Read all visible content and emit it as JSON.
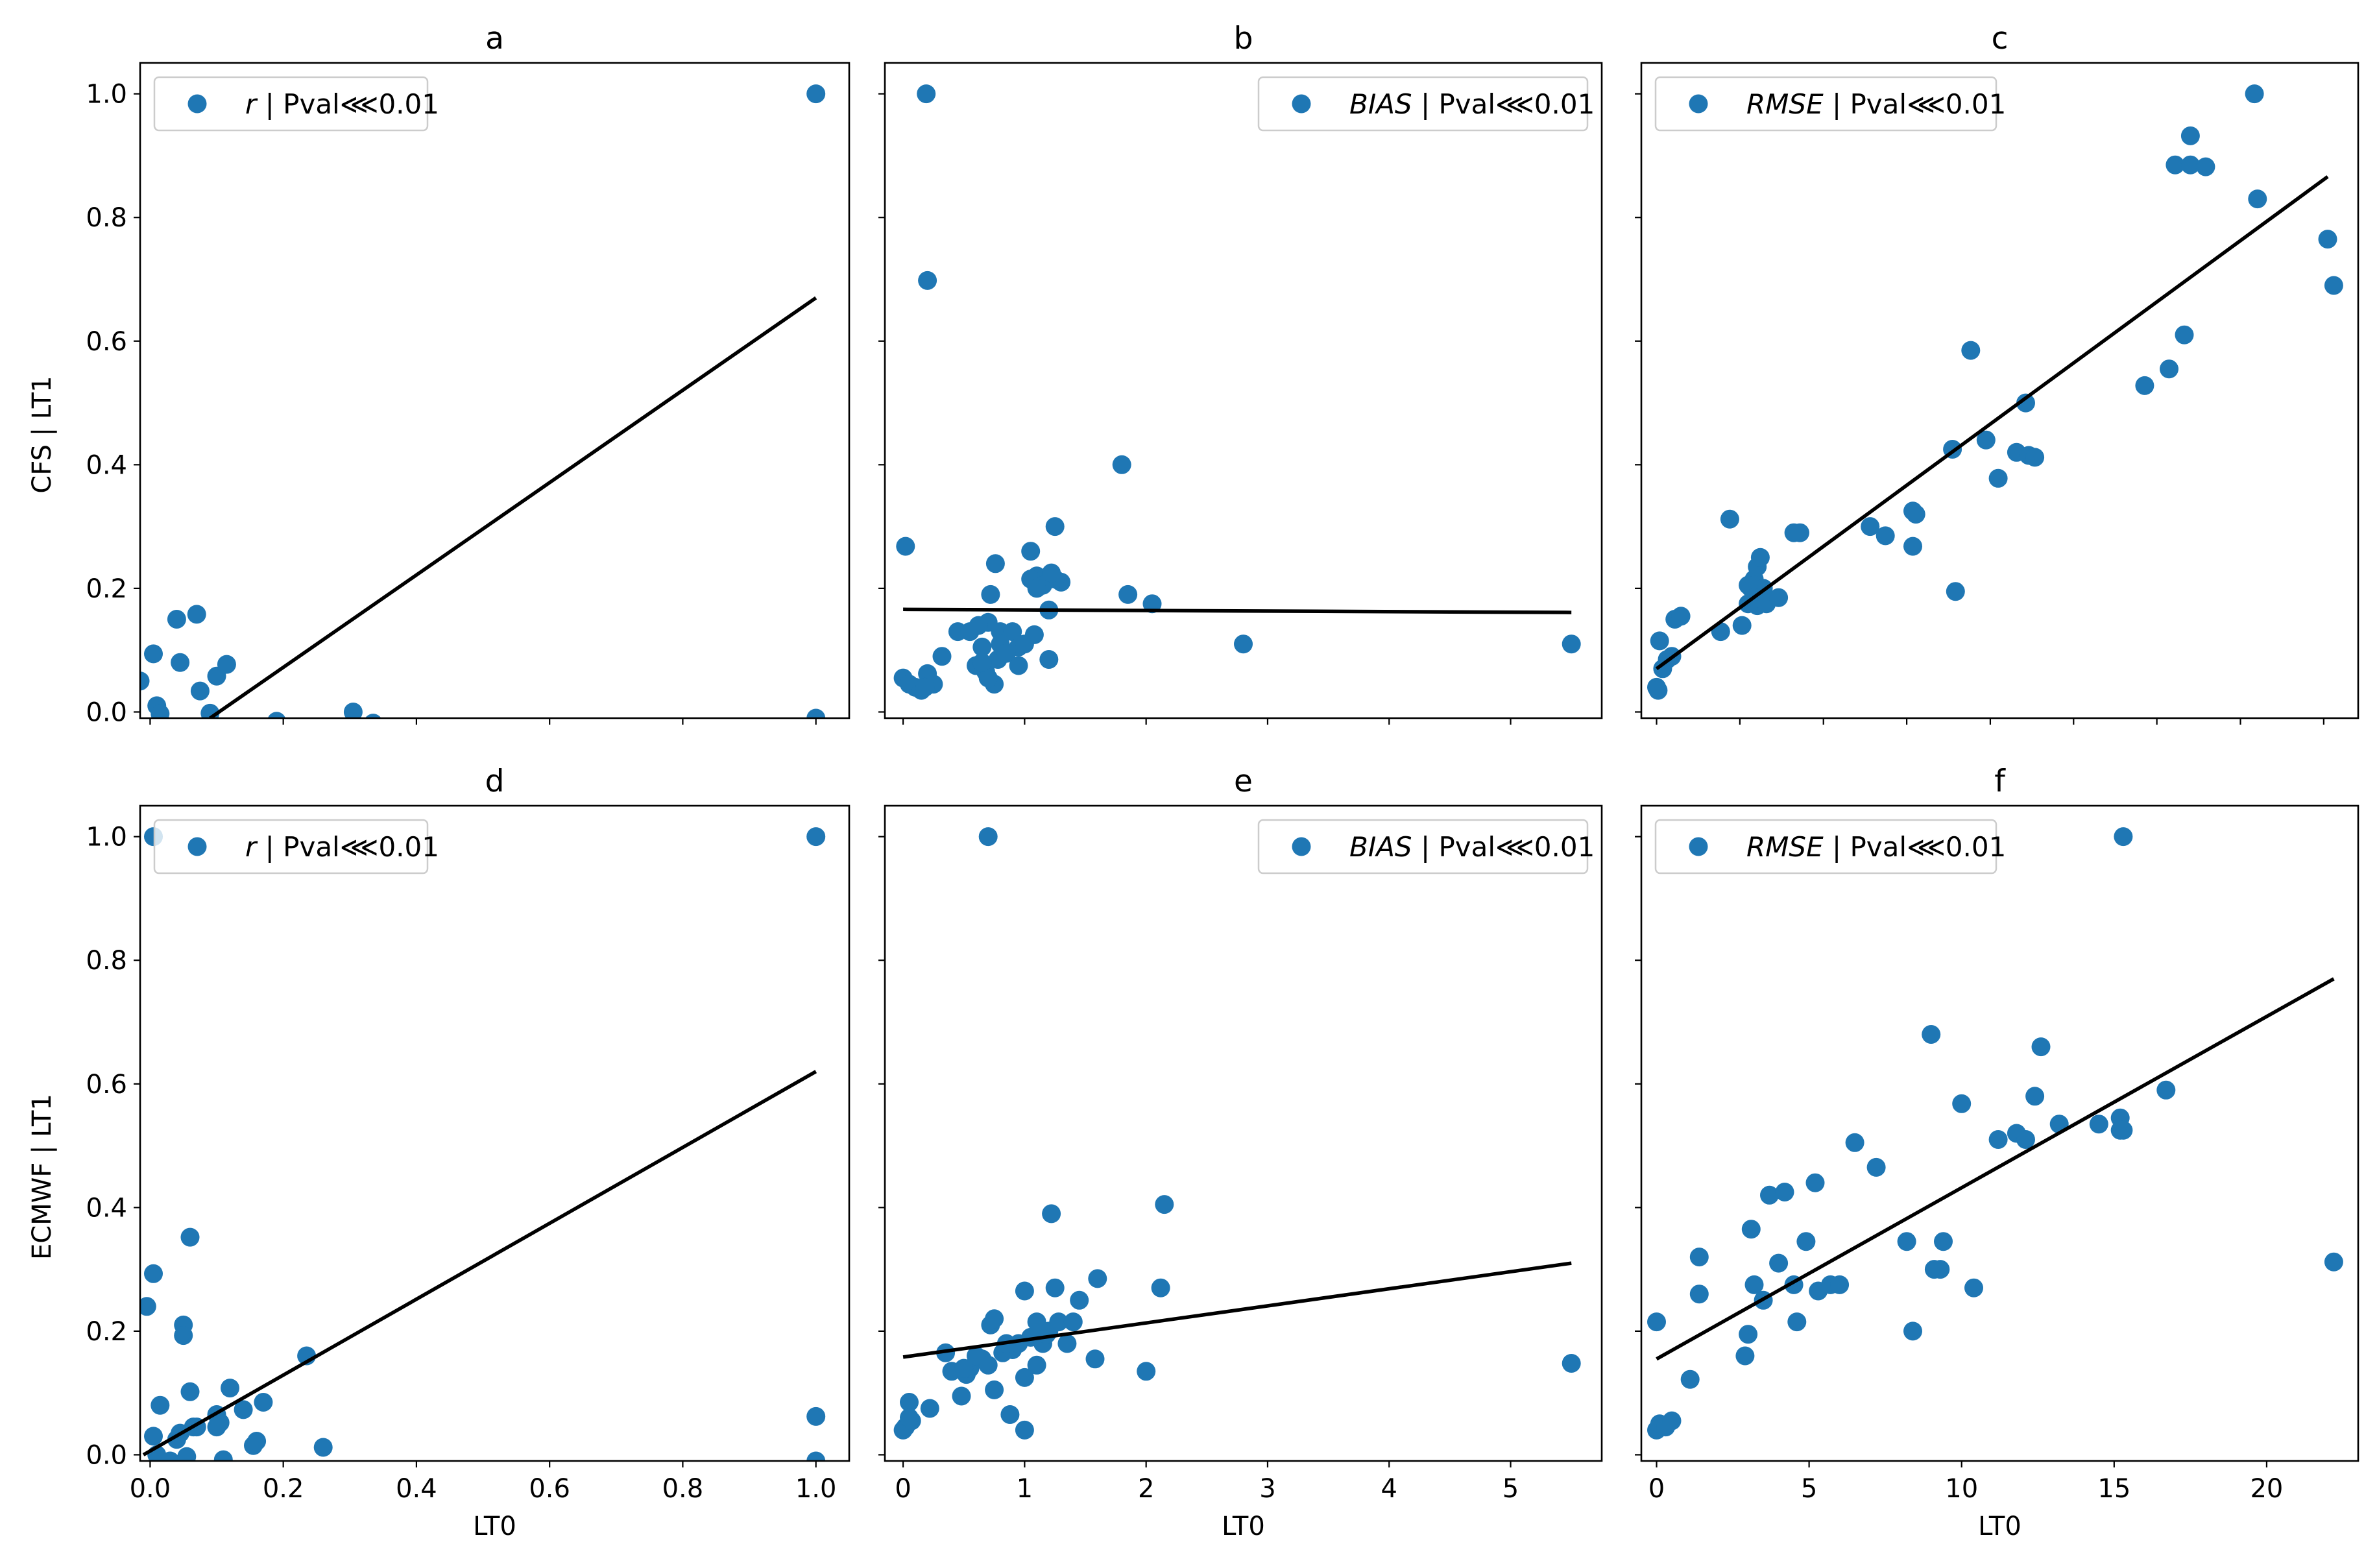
{
  "figure": {
    "row_labels": [
      "CFS | LT1",
      "ECMWF | LT1"
    ],
    "xlabel": "LT0"
  },
  "chart_data": [
    {
      "id": "a",
      "type": "scatter",
      "title": "a",
      "legend": {
        "metric": "r",
        "text": " | Pval⋘0.01",
        "placement": "top-left"
      },
      "xlim": [
        -0.015,
        1.05
      ],
      "ylim": [
        -0.01,
        1.05
      ],
      "xticks": [
        0.0,
        0.2,
        0.4,
        0.6,
        0.8,
        1.0
      ],
      "xticklabels": [],
      "yticks": [
        0.0,
        0.2,
        0.4,
        0.6,
        0.8,
        1.0
      ],
      "yticklabels": [
        "0.0",
        "0.2",
        "0.4",
        "0.6",
        "0.8",
        "1.0"
      ],
      "ylabel": "CFS | LT1",
      "xlabel": "",
      "fit": [
        [
          0.09,
          -0.01
        ],
        [
          1.0,
          0.67
        ]
      ],
      "x": [
        -0.015,
        0.005,
        0.01,
        0.015,
        0.04,
        0.045,
        0.07,
        0.075,
        0.09,
        0.1,
        0.115,
        0.19,
        0.305,
        0.335,
        1.0,
        1.0
      ],
      "y": [
        0.05,
        0.094,
        0.01,
        -0.003,
        0.15,
        0.08,
        0.158,
        0.034,
        -0.002,
        0.058,
        0.077,
        -0.015,
        0.0,
        -0.018,
        1.0,
        -0.01
      ]
    },
    {
      "id": "b",
      "type": "scatter",
      "title": "b",
      "legend": {
        "metric": "BIAS",
        "text": " | Pval⋘0.01",
        "placement": "top-right"
      },
      "xlim": [
        -0.15,
        5.75
      ],
      "ylim": [
        -0.01,
        1.05
      ],
      "xticks": [
        0,
        1,
        2,
        3,
        4,
        5
      ],
      "xticklabels": [],
      "yticks": [
        0.0,
        0.2,
        0.4,
        0.6,
        0.8,
        1.0
      ],
      "yticklabels": [],
      "ylabel": "",
      "xlabel": "",
      "fit": [
        [
          0.0,
          0.166
        ],
        [
          5.5,
          0.161
        ]
      ],
      "x": [
        0.19,
        0.2,
        0.02,
        0.0,
        0.05,
        0.1,
        0.15,
        0.2,
        0.25,
        0.18,
        0.32,
        0.45,
        0.55,
        0.6,
        0.65,
        0.7,
        0.68,
        0.75,
        0.78,
        0.8,
        0.85,
        0.9,
        0.95,
        1.0,
        0.72,
        0.76,
        1.05,
        1.1,
        1.05,
        1.15,
        1.2,
        1.25,
        1.3,
        1.25,
        1.2,
        1.08,
        1.1,
        1.22,
        0.95,
        0.8,
        0.7,
        0.85,
        1.8,
        1.85,
        2.05,
        2.8,
        5.5,
        0.62,
        0.65
      ],
      "y": [
        1.0,
        0.698,
        0.268,
        0.055,
        0.045,
        0.04,
        0.035,
        0.062,
        0.045,
        0.04,
        0.09,
        0.13,
        0.13,
        0.075,
        0.105,
        0.145,
        0.065,
        0.045,
        0.085,
        0.13,
        0.095,
        0.13,
        0.105,
        0.11,
        0.19,
        0.24,
        0.26,
        0.22,
        0.215,
        0.205,
        0.165,
        0.3,
        0.21,
        0.215,
        0.085,
        0.125,
        0.2,
        0.225,
        0.075,
        0.11,
        0.055,
        0.095,
        0.4,
        0.19,
        0.175,
        0.11,
        0.11,
        0.14,
        0.08
      ]
    },
    {
      "id": "c",
      "type": "scatter",
      "title": "c",
      "legend": {
        "metric": "RMSE",
        "text": " | Pval⋘0.01",
        "placement": "top-left"
      },
      "xlim": [
        -0.5,
        23.0
      ],
      "ylim": [
        -0.01,
        1.05
      ],
      "xticks": [
        0,
        2.73,
        5.47,
        8.2,
        10.94,
        13.67,
        16.4,
        19.14,
        21.87
      ],
      "xticklabels": [],
      "yticks": [
        0.0,
        0.2,
        0.4,
        0.6,
        0.8,
        1.0
      ],
      "yticklabels": [],
      "ylabel": "",
      "xlabel": "",
      "fit": [
        [
          0.0,
          0.07
        ],
        [
          22.0,
          0.866
        ]
      ],
      "x": [
        0.0,
        0.05,
        0.1,
        0.2,
        0.35,
        0.6,
        0.8,
        0.5,
        2.1,
        2.4,
        2.8,
        3.0,
        3.1,
        3.2,
        3.3,
        3.4,
        3.3,
        3.5,
        3.0,
        3.2,
        3.6,
        4.0,
        4.5,
        4.7,
        7.0,
        7.5,
        8.4,
        8.5,
        8.4,
        9.7,
        9.8,
        10.3,
        10.8,
        11.2,
        11.8,
        12.1,
        12.2,
        12.4,
        16.0,
        16.8,
        17.3,
        17.5,
        17.0,
        17.5,
        18.0,
        19.6,
        19.7,
        22.0,
        22.2
      ],
      "y": [
        0.04,
        0.035,
        0.115,
        0.07,
        0.085,
        0.15,
        0.155,
        0.09,
        0.13,
        0.312,
        0.14,
        0.175,
        0.2,
        0.215,
        0.235,
        0.25,
        0.172,
        0.2,
        0.205,
        0.185,
        0.175,
        0.185,
        0.29,
        0.29,
        0.3,
        0.285,
        0.268,
        0.32,
        0.325,
        0.425,
        0.195,
        0.585,
        0.44,
        0.378,
        0.42,
        0.5,
        0.415,
        0.412,
        0.528,
        0.555,
        0.61,
        0.932,
        0.885,
        0.885,
        0.882,
        1.0,
        0.83,
        0.765,
        0.69
      ]
    },
    {
      "id": "d",
      "type": "scatter",
      "title": "d",
      "legend": {
        "metric": "r",
        "text": " | Pval⋘0.01",
        "placement": "top-left"
      },
      "xlim": [
        -0.015,
        1.05
      ],
      "ylim": [
        -0.01,
        1.05
      ],
      "xticks": [
        0.0,
        0.2,
        0.4,
        0.6,
        0.8,
        1.0
      ],
      "xticklabels": [
        "0.0",
        "0.2",
        "0.4",
        "0.6",
        "0.8",
        "1.0"
      ],
      "yticks": [
        0.0,
        0.2,
        0.4,
        0.6,
        0.8,
        1.0
      ],
      "yticklabels": [
        "0.0",
        "0.2",
        "0.4",
        "0.6",
        "0.8",
        "1.0"
      ],
      "ylabel": "ECMWF | LT1",
      "xlabel": "LT0",
      "fit": [
        [
          -0.01,
          0.0
        ],
        [
          1.0,
          0.62
        ]
      ],
      "x": [
        0.005,
        0.005,
        -0.005,
        0.005,
        0.015,
        0.01,
        0.03,
        0.04,
        0.05,
        0.05,
        0.06,
        0.06,
        0.065,
        0.07,
        0.1,
        0.1,
        0.11,
        0.12,
        0.14,
        0.155,
        0.16,
        0.17,
        0.235,
        0.26,
        0.045,
        0.055,
        0.105,
        1.0,
        1.0,
        1.0
      ],
      "y": [
        1.0,
        0.293,
        0.24,
        0.03,
        0.08,
        0.0,
        -0.01,
        0.025,
        0.21,
        0.193,
        0.352,
        0.102,
        0.045,
        0.045,
        0.065,
        0.045,
        -0.008,
        0.108,
        0.073,
        0.015,
        0.022,
        0.085,
        0.16,
        0.012,
        0.035,
        -0.003,
        0.052,
        1.0,
        0.062,
        -0.01
      ]
    },
    {
      "id": "e",
      "type": "scatter",
      "title": "e",
      "legend": {
        "metric": "BIAS",
        "text": " | Pval⋘0.01",
        "placement": "top-right"
      },
      "xlim": [
        -0.15,
        5.75
      ],
      "ylim": [
        -0.01,
        1.05
      ],
      "xticks": [
        0,
        1,
        2,
        3,
        4,
        5
      ],
      "xticklabels": [
        "0",
        "1",
        "2",
        "3",
        "4",
        "5"
      ],
      "yticks": [
        0.0,
        0.2,
        0.4,
        0.6,
        0.8,
        1.0
      ],
      "yticklabels": [],
      "ylabel": "",
      "xlabel": "LT0",
      "fit": [
        [
          0.0,
          0.158
        ],
        [
          5.5,
          0.31
        ]
      ],
      "x": [
        0.7,
        0.0,
        0.02,
        0.05,
        0.07,
        0.05,
        0.22,
        0.35,
        0.4,
        0.48,
        0.52,
        0.55,
        0.65,
        0.7,
        0.72,
        0.75,
        0.82,
        0.88,
        0.9,
        0.95,
        1.0,
        1.0,
        1.05,
        1.1,
        1.1,
        1.15,
        1.2,
        1.22,
        1.25,
        1.28,
        1.35,
        1.4,
        1.45,
        1.6,
        1.58,
        1.18,
        2.0,
        2.12,
        2.15,
        1.0,
        0.85,
        0.75,
        0.6,
        0.5,
        5.5
      ],
      "y": [
        1.0,
        0.04,
        0.045,
        0.085,
        0.055,
        0.06,
        0.075,
        0.165,
        0.135,
        0.095,
        0.13,
        0.14,
        0.155,
        0.145,
        0.21,
        0.22,
        0.165,
        0.065,
        0.17,
        0.18,
        0.125,
        0.04,
        0.19,
        0.215,
        0.145,
        0.18,
        0.2,
        0.39,
        0.27,
        0.215,
        0.18,
        0.215,
        0.25,
        0.285,
        0.155,
        0.195,
        0.135,
        0.27,
        0.405,
        0.265,
        0.18,
        0.105,
        0.16,
        0.14,
        0.148
      ]
    },
    {
      "id": "f",
      "type": "scatter",
      "title": "f",
      "legend": {
        "metric": "RMSE",
        "text": " | Pval⋘0.01",
        "placement": "top-left"
      },
      "xlim": [
        -0.5,
        23.0
      ],
      "ylim": [
        -0.01,
        1.05
      ],
      "xticks": [
        0,
        5,
        10,
        15,
        20
      ],
      "xticklabels": [
        "0",
        "5",
        "10",
        "15",
        "20"
      ],
      "yticks": [
        0.0,
        0.2,
        0.4,
        0.6,
        0.8,
        1.0
      ],
      "yticklabels": [],
      "ylabel": "",
      "xlabel": "LT0",
      "fit": [
        [
          0.0,
          0.155
        ],
        [
          22.2,
          0.77
        ]
      ],
      "x": [
        0.0,
        0.0,
        0.1,
        0.3,
        0.5,
        1.1,
        1.4,
        1.4,
        2.9,
        3.0,
        3.1,
        3.2,
        3.5,
        3.7,
        4.0,
        4.2,
        4.5,
        4.6,
        4.9,
        5.2,
        5.3,
        5.7,
        6.0,
        6.5,
        7.2,
        8.2,
        8.4,
        9.0,
        9.1,
        9.3,
        9.4,
        10.0,
        10.4,
        11.2,
        11.8,
        12.1,
        12.4,
        12.6,
        13.2,
        14.5,
        15.2,
        15.2,
        15.3,
        16.7,
        22.2,
        15.3
      ],
      "y": [
        0.215,
        0.04,
        0.05,
        0.045,
        0.055,
        0.122,
        0.26,
        0.32,
        0.16,
        0.195,
        0.365,
        0.275,
        0.25,
        0.42,
        0.31,
        0.425,
        0.275,
        0.215,
        0.345,
        0.44,
        0.265,
        0.275,
        0.275,
        0.505,
        0.465,
        0.345,
        0.2,
        0.68,
        0.3,
        0.3,
        0.345,
        0.568,
        0.27,
        0.51,
        0.52,
        0.51,
        0.58,
        0.66,
        0.535,
        0.535,
        0.545,
        0.525,
        0.525,
        0.59,
        0.312,
        1.0
      ]
    }
  ]
}
